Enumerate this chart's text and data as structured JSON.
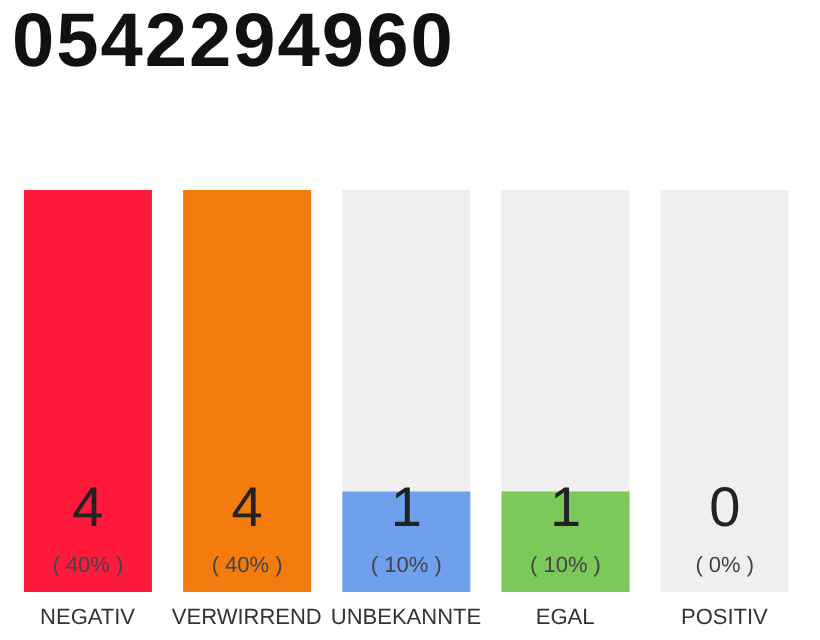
{
  "chart_data": {
    "type": "bar",
    "title": "0542294960",
    "categories": [
      "NEGATIV",
      "VERWIRREND",
      "UNBEKANNTE",
      "EGAL",
      "POSITIV"
    ],
    "values": [
      4,
      4,
      1,
      1,
      0
    ],
    "colors": [
      "#ff1a3c",
      "#f47c0e",
      "#6ea0ee",
      "#7dc85a",
      "#cccccc"
    ],
    "value_labels": [
      "4 ( 40% )",
      "4 ( 40% )",
      "1 ( 10% )",
      "1 ( 10% )",
      "0 ( 0% )"
    ]
  }
}
